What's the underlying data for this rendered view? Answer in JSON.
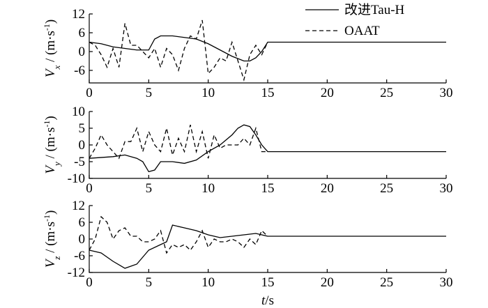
{
  "chart_data": [
    {
      "type": "line",
      "ylabel_parts": [
        "V",
        "x",
        " / (m·s",
        "-1",
        ")"
      ],
      "xlim": [
        0,
        30
      ],
      "xticks": [
        0,
        5,
        10,
        15,
        20,
        25,
        30
      ],
      "ylim": [
        -10,
        12
      ],
      "yticks": [
        12,
        6,
        0,
        -6
      ],
      "legend": "upper right",
      "series": [
        {
          "name": "改进Tau-H",
          "color": "#000000",
          "dash": "solid",
          "x": [
            0,
            1,
            2,
            3,
            4,
            5,
            5.5,
            6,
            7,
            8,
            9,
            10,
            11,
            12,
            13,
            13.5,
            14,
            14.5,
            15,
            30
          ],
          "values": [
            3,
            2.5,
            1.5,
            1,
            0.5,
            0.5,
            4,
            5,
            5,
            4.5,
            4,
            2.5,
            0.5,
            -1.5,
            -3,
            -3,
            -2,
            0,
            3,
            3
          ]
        },
        {
          "name": "OAAT",
          "color": "#000000",
          "dash": "dashed",
          "x": [
            0,
            0.5,
            1,
            1.5,
            2,
            2.5,
            3,
            3.5,
            4,
            4.5,
            5,
            5.5,
            6,
            6.5,
            7,
            7.5,
            8,
            8.5,
            9,
            9.5,
            10,
            10.5,
            11,
            11.5,
            12,
            12.5,
            13,
            13.5,
            14,
            14.5,
            15
          ],
          "values": [
            3,
            2,
            -1,
            -5,
            1,
            -5,
            9,
            2,
            2,
            0,
            -2,
            1,
            -5,
            1,
            -1,
            -6,
            1,
            5,
            4,
            10,
            -7,
            -5,
            -2,
            -3,
            3,
            -3,
            -9,
            -1,
            2,
            -1,
            3
          ]
        }
      ]
    },
    {
      "type": "line",
      "ylabel_parts": [
        "V",
        "y",
        " / (m·s",
        "-1",
        ")"
      ],
      "xlim": [
        0,
        30
      ],
      "xticks": [
        0,
        5,
        10,
        15,
        20,
        25,
        30
      ],
      "ylim": [
        -10,
        10
      ],
      "yticks": [
        10,
        5,
        0,
        -5,
        -10
      ],
      "series": [
        {
          "name": "改进Tau-H",
          "color": "#000000",
          "dash": "solid",
          "x": [
            0,
            2,
            3,
            4,
            4.5,
            5,
            5.5,
            6,
            7,
            8,
            9,
            10,
            11,
            12,
            12.5,
            13,
            13.5,
            14,
            14.5,
            15,
            30
          ],
          "values": [
            -4,
            -3.5,
            -3,
            -4,
            -5,
            -8,
            -7.5,
            -5,
            -5,
            -5.5,
            -4.5,
            -2,
            0,
            3,
            5,
            6,
            5.5,
            3,
            0,
            -2,
            -2
          ]
        },
        {
          "name": "OAAT",
          "color": "#000000",
          "dash": "dashed",
          "x": [
            0,
            0.5,
            1,
            1.5,
            2,
            2.5,
            3,
            3.5,
            4,
            4.5,
            5,
            5.5,
            6,
            6.5,
            7,
            7.5,
            8,
            8.5,
            9,
            9.5,
            10,
            10.5,
            11,
            11.5,
            12,
            12.5,
            13,
            13.5,
            14,
            14.5,
            15
          ],
          "values": [
            -4,
            -1,
            3,
            0,
            -2,
            -4,
            1,
            1,
            5,
            -2,
            4,
            0,
            -2,
            5,
            -3,
            2,
            -2,
            6,
            -2,
            4,
            -4,
            3,
            -1,
            0,
            0,
            0,
            2,
            0,
            5,
            -2,
            -2
          ]
        }
      ]
    },
    {
      "type": "line",
      "ylabel_parts": [
        "V",
        "z",
        " / (m·s",
        "-1",
        ")"
      ],
      "xlabel_parts": [
        "t",
        "/s"
      ],
      "xlim": [
        0,
        30
      ],
      "xticks": [
        0,
        5,
        10,
        15,
        20,
        25,
        30
      ],
      "ylim": [
        -12,
        12
      ],
      "yticks": [
        12,
        6,
        0,
        -6,
        -12
      ],
      "series": [
        {
          "name": "改进Tau-H",
          "color": "#000000",
          "dash": "solid",
          "x": [
            0,
            1,
            2,
            3,
            4,
            5,
            6,
            6.5,
            7,
            8,
            9,
            10,
            11,
            12,
            13,
            14,
            14.5,
            15,
            30
          ],
          "values": [
            -4,
            -5,
            -8,
            -10.5,
            -9,
            -4,
            -2,
            -1,
            5,
            4,
            3,
            1.5,
            0.5,
            1,
            1.5,
            2,
            1.5,
            1,
            1
          ]
        },
        {
          "name": "OAAT",
          "color": "#000000",
          "dash": "dashed",
          "x": [
            0,
            0.5,
            1,
            1.5,
            2,
            2.5,
            3,
            3.5,
            4,
            4.5,
            5,
            5.5,
            6,
            6.5,
            7,
            7.5,
            8,
            8.5,
            9,
            9.5,
            10,
            10.5,
            11,
            11.5,
            12,
            12.5,
            13,
            13.5,
            14,
            14.5,
            15
          ],
          "values": [
            -4,
            0,
            8,
            6,
            0,
            3,
            4,
            1,
            1,
            -1,
            -1,
            0,
            3,
            -5,
            -2,
            -3,
            -2,
            -4,
            -1,
            3,
            -3,
            0,
            -1,
            -1,
            0,
            -1,
            -3,
            0,
            -2,
            3,
            1
          ]
        }
      ]
    }
  ]
}
